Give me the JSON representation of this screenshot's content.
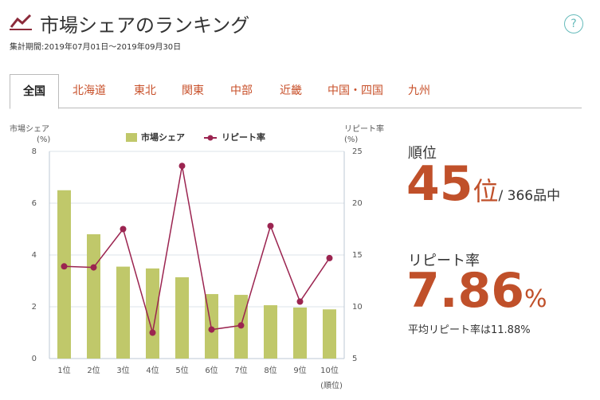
{
  "header": {
    "title": "市場シェアのランキング",
    "period": "集計期間:2019年07月01日〜2019年09月30日",
    "help": "?"
  },
  "tabs": [
    "全国",
    "北海道",
    "東北",
    "関東",
    "中部",
    "近畿",
    "中国・四国",
    "九州"
  ],
  "rank": {
    "label": "順位",
    "value": "45",
    "unit": "位",
    "total": "/ 366品中"
  },
  "repeat": {
    "label": "リピート率",
    "value": "7.86",
    "unit": "%",
    "average": "平均リピート率は11.88%"
  },
  "chart_data": {
    "type": "bar-line",
    "ylabel": [
      "市場シェア",
      "(%)"
    ],
    "y2label": [
      "リピート率",
      "(%)"
    ],
    "xlabel": "(順位)",
    "categories": [
      "1位",
      "2位",
      "3位",
      "4位",
      "5位",
      "6位",
      "7位",
      "8位",
      "9位",
      "10位"
    ],
    "series": [
      {
        "name": "市場シェア",
        "type": "bar",
        "color": "#c0c86a",
        "values": [
          6.5,
          4.8,
          3.55,
          3.48,
          3.14,
          2.49,
          2.46,
          2.06,
          1.97,
          1.9
        ]
      },
      {
        "name": "リピート率",
        "type": "line",
        "axis": "y2",
        "color": "#9b2450",
        "values": [
          13.9,
          13.8,
          17.5,
          7.5,
          23.6,
          7.8,
          8.2,
          17.8,
          10.5,
          14.7
        ]
      }
    ],
    "ylim": [
      0,
      8
    ],
    "yticks": [
      0,
      2,
      4,
      6,
      8
    ],
    "y2lim": [
      5,
      25
    ],
    "y2ticks": [
      5,
      10,
      15,
      20,
      25
    ],
    "grid": true,
    "legend": "top"
  }
}
